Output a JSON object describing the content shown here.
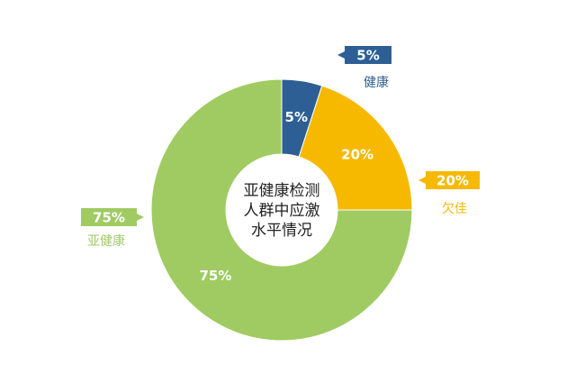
{
  "chart_data": {
    "type": "donut",
    "title": [
      "亚健康检测",
      "人群中应激",
      "水平情况"
    ],
    "categories": [
      "健康",
      "欠佳",
      "亚健康"
    ],
    "values": [
      5,
      20,
      75
    ],
    "value_labels": [
      "5%",
      "20%",
      "75%"
    ],
    "colors": [
      "#2d5f94",
      "#f6b900",
      "#9fcb62"
    ]
  }
}
